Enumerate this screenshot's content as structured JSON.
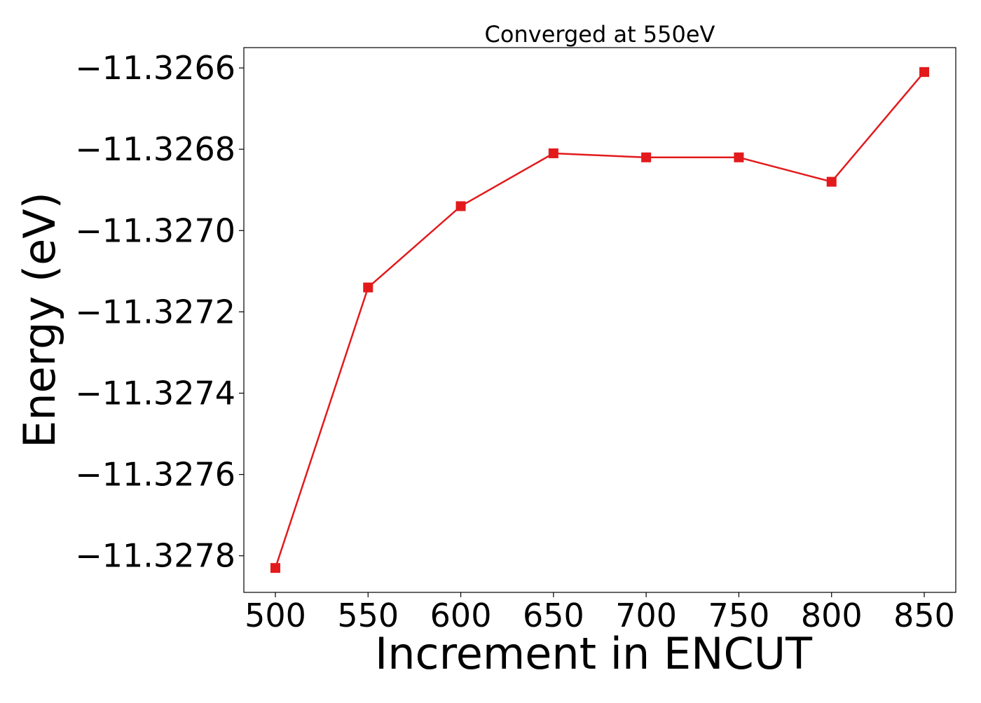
{
  "chart_data": {
    "type": "line",
    "title": "Converged at 550eV",
    "xlabel": "Increment in ENCUT",
    "ylabel": "Energy (eV)",
    "x": [
      500,
      550,
      600,
      650,
      700,
      750,
      800,
      850
    ],
    "series": [
      {
        "values": [
          -11.32783,
          -11.32714,
          -11.32694,
          -11.32681,
          -11.32682,
          -11.32682,
          -11.32688,
          -11.32661
        ],
        "color": "#e31a1c",
        "marker": "square"
      }
    ],
    "xticks": [
      500,
      550,
      600,
      650,
      700,
      750,
      800,
      850
    ],
    "xtick_labels": [
      "500",
      "550",
      "600",
      "650",
      "700",
      "750",
      "800",
      "850"
    ],
    "yticks": [
      -11.3278,
      -11.3276,
      -11.3274,
      -11.3272,
      -11.327,
      -11.3268,
      -11.3266
    ],
    "ytick_labels": [
      "−11.3278",
      "−11.3276",
      "−11.3274",
      "−11.3272",
      "−11.3270",
      "−11.3268",
      "−11.3266"
    ],
    "xlim": [
      483,
      867
    ],
    "ylim": [
      -11.32789,
      -11.32655
    ],
    "grid": false,
    "legend": "none"
  }
}
